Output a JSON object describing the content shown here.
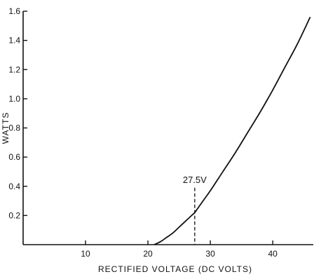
{
  "chart_data": {
    "type": "line",
    "title": "",
    "xlabel": "RECTIFIED VOLTAGE (DC VOLTS)",
    "ylabel": "WATTS",
    "xlim": [
      0,
      46.5
    ],
    "ylim": [
      0,
      1.6
    ],
    "x_ticks": [
      10,
      20,
      30,
      40
    ],
    "x_tick_labels": [
      "10",
      "20",
      "30",
      "40"
    ],
    "y_ticks": [
      0.2,
      0.4,
      0.6,
      0.8,
      1.0,
      1.2,
      1.4,
      1.6
    ],
    "y_tick_labels": [
      "0.2",
      "0.4",
      "0.6",
      "0.8",
      "1.0",
      "1.2",
      "1.4",
      "1.6"
    ],
    "grid": false,
    "legend": "none",
    "series": [
      {
        "x": [
          21,
          22,
          23,
          24,
          25,
          26,
          27,
          27.5,
          28,
          29,
          30,
          32,
          34,
          36,
          38,
          40,
          42,
          44,
          46
        ],
        "y": [
          0.0,
          0.02,
          0.05,
          0.08,
          0.12,
          0.16,
          0.2,
          0.22,
          0.25,
          0.31,
          0.37,
          0.5,
          0.63,
          0.77,
          0.91,
          1.06,
          1.22,
          1.38,
          1.56
        ]
      }
    ],
    "annotations": [
      {
        "label": "27.5V",
        "x": 27.5,
        "y": 0.4,
        "marker": "dashed-vertical-line"
      }
    ]
  }
}
